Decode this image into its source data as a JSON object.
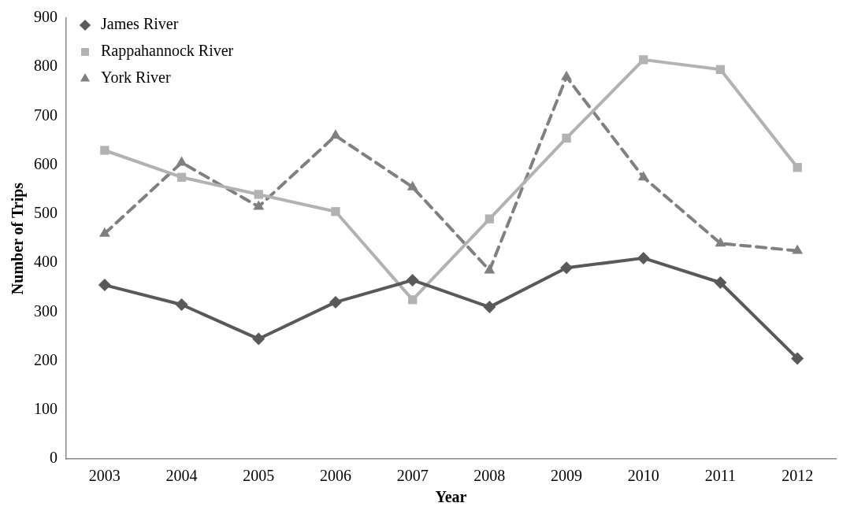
{
  "chart_data": {
    "type": "line",
    "xlabel": "Year",
    "ylabel": "Number of Trips",
    "categories": [
      "2003",
      "2004",
      "2005",
      "2006",
      "2007",
      "2008",
      "2009",
      "2010",
      "2011",
      "2012"
    ],
    "series": [
      {
        "name": "James River",
        "color": "#595959",
        "marker": "diamond",
        "line_style": "solid",
        "values": [
          355,
          315,
          245,
          320,
          365,
          310,
          390,
          410,
          360,
          205
        ]
      },
      {
        "name": "Rappahannock River",
        "color": "#b2b2b2",
        "marker": "square",
        "line_style": "solid",
        "values": [
          630,
          575,
          540,
          505,
          325,
          490,
          655,
          815,
          795,
          595
        ]
      },
      {
        "name": "York River",
        "color": "#808080",
        "marker": "triangle",
        "line_style": "dashed",
        "values": [
          460,
          605,
          515,
          660,
          555,
          385,
          780,
          575,
          440,
          425
        ]
      }
    ],
    "ylim": [
      0,
      900
    ],
    "yticks": [
      0,
      100,
      200,
      300,
      400,
      500,
      600,
      700,
      800,
      900
    ],
    "grid": false,
    "legend": "top left"
  }
}
